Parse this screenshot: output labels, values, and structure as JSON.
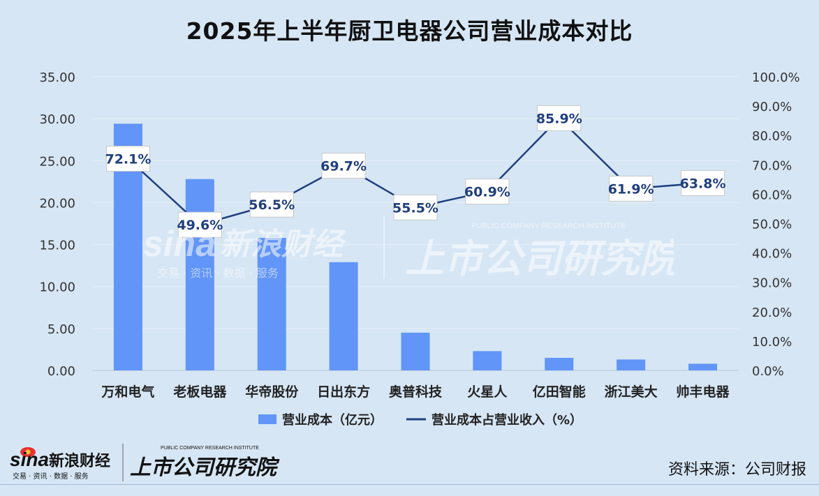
{
  "chart_data": {
    "type": "bar",
    "title": "2025年上半年厨卫电器公司营业成本对比",
    "categories": [
      "万和电气",
      "老板电器",
      "华帝股份",
      "日出东方",
      "奥普科技",
      "火星人",
      "亿田智能",
      "浙江美大",
      "帅丰电器"
    ],
    "series": [
      {
        "name": "营业成本（亿元）",
        "type": "bar",
        "axis": "left",
        "color": "#6195f7",
        "values": [
          29.4,
          22.8,
          15.8,
          12.9,
          4.5,
          2.3,
          1.5,
          1.3,
          0.8
        ]
      },
      {
        "name": "营业成本占营业收入（%）",
        "type": "line",
        "axis": "right",
        "color": "#1f3f7f",
        "values": [
          72.1,
          49.6,
          56.5,
          69.7,
          55.5,
          60.9,
          85.9,
          61.9,
          63.8
        ],
        "labels": [
          "72.1%",
          "49.6%",
          "56.5%",
          "69.7%",
          "55.5%",
          "60.9%",
          "85.9%",
          "61.9%",
          "63.8%"
        ]
      }
    ],
    "y_left": {
      "range": [
        0,
        35
      ],
      "ticks": [
        "0.00",
        "5.00",
        "10.00",
        "15.00",
        "20.00",
        "25.00",
        "30.00",
        "35.00"
      ]
    },
    "y_right": {
      "range": [
        0,
        100
      ],
      "ticks": [
        "0.0%",
        "10.0%",
        "20.0%",
        "30.0%",
        "40.0%",
        "50.0%",
        "60.0%",
        "70.0%",
        "80.0%",
        "90.0%",
        "100.0%"
      ]
    },
    "grid": true,
    "legend_position": "bottom"
  },
  "watermark": {
    "brand_latin": "sina",
    "brand_cn": "新浪财经",
    "brand_sub": "交易 · 资讯 · 数据 · 服务",
    "institute_cn": "上市公司研究院",
    "institute_en": "PUBLIC COMPANY RESEARCH INSTITUTE"
  },
  "source": "资料来源：公司财报"
}
